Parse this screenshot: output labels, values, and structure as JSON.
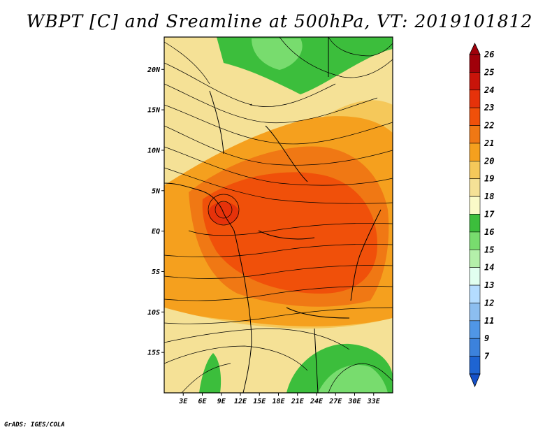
{
  "title": "WBPT [C] and Sreamline at 500hPa, VT: 2019101812",
  "credit": "GrADS: IGES/COLA",
  "map": {
    "lon_range": [
      0,
      36
    ],
    "lat_range": [
      -20,
      24
    ],
    "lat_ticks": [
      {
        "value": 20,
        "label": "20N"
      },
      {
        "value": 15,
        "label": "15N"
      },
      {
        "value": 10,
        "label": "10N"
      },
      {
        "value": 5,
        "label": "5N"
      },
      {
        "value": 0,
        "label": "EQ"
      },
      {
        "value": -5,
        "label": "5S"
      },
      {
        "value": -10,
        "label": "10S"
      },
      {
        "value": -15,
        "label": "15S"
      }
    ],
    "lon_ticks": [
      {
        "value": 3,
        "label": "3E"
      },
      {
        "value": 6,
        "label": "6E"
      },
      {
        "value": 9,
        "label": "9E"
      },
      {
        "value": 12,
        "label": "12E"
      },
      {
        "value": 15,
        "label": "15E"
      },
      {
        "value": 18,
        "label": "18E"
      },
      {
        "value": 21,
        "label": "21E"
      },
      {
        "value": 24,
        "label": "24E"
      },
      {
        "value": 27,
        "label": "27E"
      },
      {
        "value": 30,
        "label": "30E"
      },
      {
        "value": 33,
        "label": "33E"
      }
    ]
  },
  "colorbar": {
    "levels": [
      {
        "label": "26",
        "color": "#a0000a"
      },
      {
        "label": "25",
        "color": "#c8140a"
      },
      {
        "label": "24",
        "color": "#e6320a"
      },
      {
        "label": "23",
        "color": "#f0500a"
      },
      {
        "label": "22",
        "color": "#f07814"
      },
      {
        "label": "21",
        "color": "#f5a01e"
      },
      {
        "label": "20",
        "color": "#f5c85a"
      },
      {
        "label": "19",
        "color": "#f5e196"
      },
      {
        "label": "18",
        "color": "#fafac8"
      },
      {
        "label": "17",
        "color": "#3cbe3c"
      },
      {
        "label": "16",
        "color": "#78dc6e"
      },
      {
        "label": "15",
        "color": "#b4f0aa"
      },
      {
        "label": "14",
        "color": "#e1fff0"
      },
      {
        "label": "13",
        "color": "#b4dcff"
      },
      {
        "label": "12",
        "color": "#8cbef0"
      },
      {
        "label": "11",
        "color": "#5096e6"
      },
      {
        "label": "9",
        "color": "#3c82dc"
      },
      {
        "label": "7",
        "color": "#1e64d2"
      }
    ],
    "bottom_color": "#1450c8"
  }
}
